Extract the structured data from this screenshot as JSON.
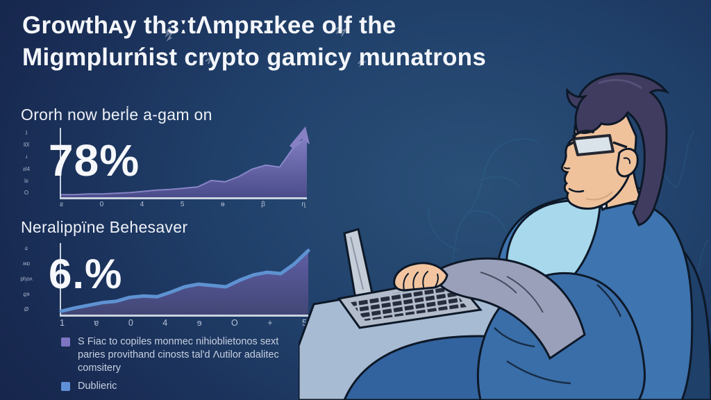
{
  "title": {
    "line1": "Growthᴀy thɜːtɅmpʀɪkee olf the",
    "line2": "Miɡmplurńist crypto gamicy munatrons"
  },
  "sections": [
    {
      "heading": "Ororh now berl̇e a-gam on",
      "stat": "78%"
    },
    {
      "heading": "Neralippïne Behesaver",
      "stat": "6.%"
    }
  ],
  "legend": {
    "items": [
      {
        "color": "#7d74c2",
        "label": "S Fiac to copiles monmec nihioblietonos sext paries provithand cinosts tal'd Λutilor adalitec comsitery"
      },
      {
        "color": "#5f8fd6",
        "label": "Dublieric"
      }
    ]
  },
  "chart_data": [
    {
      "type": "area",
      "name": "growth-curve-top",
      "values": [
        2,
        2,
        3,
        3,
        4,
        5,
        7,
        9,
        10,
        12,
        14,
        24,
        22,
        30,
        42,
        48,
        45,
        75,
        92
      ],
      "x_ticks": [
        "ƨ",
        "0",
        "4",
        "5",
        "ɵ",
        "β",
        "ɳ"
      ],
      "y_ticks": [
        "ʇ",
        "Ɩ0Ɩ",
        "ɹ",
        "ƨƖ4",
        "Ɩƨ",
        "O"
      ],
      "ylim": [
        0,
        100
      ],
      "stat_label": "78%",
      "annotation": "upward-arrow at right end",
      "fill_color": "#6f68b4",
      "line_color": "#8d86cc",
      "grid": false,
      "legend_position": "none"
    },
    {
      "type": "area",
      "name": "growth-curve-bottom",
      "values": [
        3,
        8,
        12,
        16,
        18,
        24,
        26,
        25,
        32,
        40,
        44,
        42,
        40,
        50,
        58,
        62,
        60,
        75,
        95
      ],
      "x_ticks": [
        "1",
        "ɐ",
        "0",
        "4",
        "ɘ",
        "O",
        "+",
        "5"
      ],
      "y_ticks": [
        "ɕ",
        "ʍɒ",
        "pƖɿoʌ",
        "ϱɘ",
        "Ø"
      ],
      "ylim": [
        0,
        100
      ],
      "stat_label": "6.%",
      "fill_color": "#5a58a0",
      "line_color": "#5f93d4",
      "grid": false,
      "legend_position": "none"
    }
  ],
  "illustration_note": "man with glasses seated in dark blue chair typing on laptop at desk"
}
